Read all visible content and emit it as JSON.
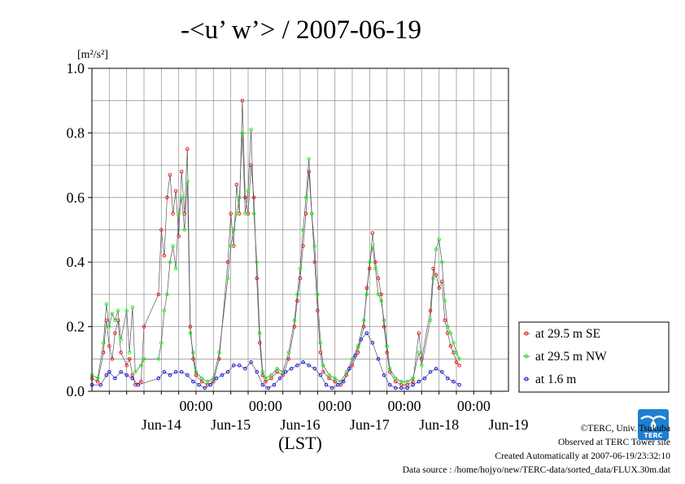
{
  "chart_data": {
    "type": "scatter",
    "title": "-<u’ w’> / 2007-06-19",
    "unit_label": "[m²/s²]",
    "xlabel": "(LST)",
    "ylim": [
      0.0,
      1.0
    ],
    "y_ticks": [
      "0.0",
      "0.2",
      "0.4",
      "0.6",
      "0.8",
      "1.0"
    ],
    "x_range_days": [
      "2007-06-13T12:00",
      "2007-06-19T12:00"
    ],
    "x_time_ticks": [
      "00:00",
      "00:00",
      "00:00",
      "00:00",
      "00:00"
    ],
    "x_day_labels": [
      "Jun-14",
      "Jun-15",
      "Jun-16",
      "Jun-17",
      "Jun-18",
      "Jun-19"
    ],
    "grid": true,
    "legend_position": "right-bottom",
    "series": [
      {
        "name": "at 29.5 m SE",
        "color": "#ff0000",
        "points": [
          [
            "06-13 12:00",
            0.04
          ],
          [
            "06-13 14:00",
            0.03
          ],
          [
            "06-13 16:00",
            0.12
          ],
          [
            "06-13 17:00",
            0.22
          ],
          [
            "06-13 18:00",
            0.14
          ],
          [
            "06-13 19:00",
            0.1
          ],
          [
            "06-13 20:00",
            0.18
          ],
          [
            "06-13 21:00",
            0.22
          ],
          [
            "06-13 22:00",
            0.12
          ],
          [
            "06-14 00:00",
            0.08
          ],
          [
            "06-14 01:00",
            0.1
          ],
          [
            "06-14 02:00",
            0.05
          ],
          [
            "06-14 03:00",
            0.02
          ],
          [
            "06-14 05:00",
            0.03
          ],
          [
            "06-14 06:00",
            0.2
          ],
          [
            "06-14 11:00",
            0.3
          ],
          [
            "06-14 12:00",
            0.5
          ],
          [
            "06-14 13:00",
            0.42
          ],
          [
            "06-14 14:00",
            0.6
          ],
          [
            "06-14 15:00",
            0.67
          ],
          [
            "06-14 16:00",
            0.55
          ],
          [
            "06-14 17:00",
            0.62
          ],
          [
            "06-14 18:00",
            0.48
          ],
          [
            "06-14 19:00",
            0.68
          ],
          [
            "06-14 20:00",
            0.55
          ],
          [
            "06-14 21:00",
            0.75
          ],
          [
            "06-14 22:00",
            0.2
          ],
          [
            "06-14 23:00",
            0.1
          ],
          [
            "06-15 00:00",
            0.05
          ],
          [
            "06-15 02:00",
            0.03
          ],
          [
            "06-15 04:00",
            0.02
          ],
          [
            "06-15 06:00",
            0.03
          ],
          [
            "06-15 08:00",
            0.1
          ],
          [
            "06-15 11:00",
            0.4
          ],
          [
            "06-15 12:00",
            0.55
          ],
          [
            "06-15 13:00",
            0.45
          ],
          [
            "06-15 14:00",
            0.64
          ],
          [
            "06-15 15:00",
            0.55
          ],
          [
            "06-15 16:00",
            0.9
          ],
          [
            "06-15 17:00",
            0.6
          ],
          [
            "06-15 18:00",
            0.55
          ],
          [
            "06-15 19:00",
            0.7
          ],
          [
            "06-15 20:00",
            0.6
          ],
          [
            "06-15 21:00",
            0.35
          ],
          [
            "06-15 22:00",
            0.15
          ],
          [
            "06-15 23:00",
            0.05
          ],
          [
            "06-16 00:00",
            0.03
          ],
          [
            "06-16 02:00",
            0.04
          ],
          [
            "06-16 04:00",
            0.06
          ],
          [
            "06-16 06:00",
            0.05
          ],
          [
            "06-16 08:00",
            0.1
          ],
          [
            "06-16 10:00",
            0.2
          ],
          [
            "06-16 11:00",
            0.28
          ],
          [
            "06-16 12:00",
            0.35
          ],
          [
            "06-16 13:00",
            0.45
          ],
          [
            "06-16 14:00",
            0.55
          ],
          [
            "06-16 15:00",
            0.68
          ],
          [
            "06-16 16:00",
            0.55
          ],
          [
            "06-16 17:00",
            0.4
          ],
          [
            "06-16 18:00",
            0.25
          ],
          [
            "06-16 19:00",
            0.12
          ],
          [
            "06-16 20:00",
            0.06
          ],
          [
            "06-16 22:00",
            0.04
          ],
          [
            "06-17 00:00",
            0.03
          ],
          [
            "06-17 02:00",
            0.02
          ],
          [
            "06-17 04:00",
            0.05
          ],
          [
            "06-17 06:00",
            0.08
          ],
          [
            "06-17 08:00",
            0.12
          ],
          [
            "06-17 10:00",
            0.2
          ],
          [
            "06-17 11:00",
            0.32
          ],
          [
            "06-17 12:00",
            0.38
          ],
          [
            "06-17 13:00",
            0.49
          ],
          [
            "06-17 14:00",
            0.4
          ],
          [
            "06-17 15:00",
            0.35
          ],
          [
            "06-17 16:00",
            0.3
          ],
          [
            "06-17 17:00",
            0.2
          ],
          [
            "06-17 18:00",
            0.12
          ],
          [
            "06-17 19:00",
            0.06
          ],
          [
            "06-17 21:00",
            0.03
          ],
          [
            "06-17 23:00",
            0.02
          ],
          [
            "06-18 01:00",
            0.02
          ],
          [
            "06-18 03:00",
            0.03
          ],
          [
            "06-18 05:00",
            0.18
          ],
          [
            "06-18 06:00",
            0.1
          ],
          [
            "06-18 09:00",
            0.25
          ],
          [
            "06-18 10:00",
            0.38
          ],
          [
            "06-18 11:00",
            0.36
          ],
          [
            "06-18 12:00",
            0.32
          ],
          [
            "06-18 13:00",
            0.34
          ],
          [
            "06-18 14:00",
            0.22
          ],
          [
            "06-18 15:00",
            0.18
          ],
          [
            "06-18 16:00",
            0.14
          ],
          [
            "06-18 17:00",
            0.12
          ],
          [
            "06-18 18:00",
            0.09
          ],
          [
            "06-18 19:00",
            0.08
          ]
        ]
      },
      {
        "name": "at 29.5 m NW",
        "color": "#00ff00",
        "points": [
          [
            "06-13 12:00",
            0.05
          ],
          [
            "06-13 14:00",
            0.04
          ],
          [
            "06-13 16:00",
            0.15
          ],
          [
            "06-13 17:00",
            0.27
          ],
          [
            "06-13 18:00",
            0.2
          ],
          [
            "06-13 19:00",
            0.24
          ],
          [
            "06-13 20:00",
            0.22
          ],
          [
            "06-13 21:00",
            0.25
          ],
          [
            "06-13 22:00",
            0.16
          ],
          [
            "06-14 00:00",
            0.25
          ],
          [
            "06-14 01:00",
            0.12
          ],
          [
            "06-14 02:00",
            0.26
          ],
          [
            "06-14 03:00",
            0.06
          ],
          [
            "06-14 05:00",
            0.08
          ],
          [
            "06-14 06:00",
            0.1
          ],
          [
            "06-14 11:00",
            0.1
          ],
          [
            "06-14 12:00",
            0.15
          ],
          [
            "06-14 13:00",
            0.25
          ],
          [
            "06-14 14:00",
            0.3
          ],
          [
            "06-14 15:00",
            0.4
          ],
          [
            "06-14 16:00",
            0.45
          ],
          [
            "06-14 17:00",
            0.38
          ],
          [
            "06-14 18:00",
            0.55
          ],
          [
            "06-14 19:00",
            0.6
          ],
          [
            "06-14 20:00",
            0.5
          ],
          [
            "06-14 21:00",
            0.65
          ],
          [
            "06-14 22:00",
            0.18
          ],
          [
            "06-14 23:00",
            0.12
          ],
          [
            "06-15 00:00",
            0.06
          ],
          [
            "06-15 02:00",
            0.04
          ],
          [
            "06-15 04:00",
            0.03
          ],
          [
            "06-15 06:00",
            0.04
          ],
          [
            "06-15 08:00",
            0.12
          ],
          [
            "06-15 11:00",
            0.35
          ],
          [
            "06-15 12:00",
            0.45
          ],
          [
            "06-15 13:00",
            0.5
          ],
          [
            "06-15 14:00",
            0.55
          ],
          [
            "06-15 15:00",
            0.6
          ],
          [
            "06-15 16:00",
            0.8
          ],
          [
            "06-15 17:00",
            0.55
          ],
          [
            "06-15 18:00",
            0.62
          ],
          [
            "06-15 19:00",
            0.81
          ],
          [
            "06-15 20:00",
            0.55
          ],
          [
            "06-15 21:00",
            0.4
          ],
          [
            "06-15 22:00",
            0.18
          ],
          [
            "06-15 23:00",
            0.06
          ],
          [
            "06-16 00:00",
            0.04
          ],
          [
            "06-16 02:00",
            0.05
          ],
          [
            "06-16 04:00",
            0.07
          ],
          [
            "06-16 06:00",
            0.06
          ],
          [
            "06-16 08:00",
            0.12
          ],
          [
            "06-16 10:00",
            0.22
          ],
          [
            "06-16 11:00",
            0.3
          ],
          [
            "06-16 12:00",
            0.38
          ],
          [
            "06-16 13:00",
            0.5
          ],
          [
            "06-16 14:00",
            0.6
          ],
          [
            "06-16 15:00",
            0.72
          ],
          [
            "06-16 16:00",
            0.55
          ],
          [
            "06-16 17:00",
            0.45
          ],
          [
            "06-16 18:00",
            0.3
          ],
          [
            "06-16 19:00",
            0.15
          ],
          [
            "06-16 20:00",
            0.08
          ],
          [
            "06-16 22:00",
            0.05
          ],
          [
            "06-17 00:00",
            0.04
          ],
          [
            "06-17 02:00",
            0.03
          ],
          [
            "06-17 04:00",
            0.06
          ],
          [
            "06-17 06:00",
            0.1
          ],
          [
            "06-17 08:00",
            0.14
          ],
          [
            "06-17 10:00",
            0.22
          ],
          [
            "06-17 11:00",
            0.3
          ],
          [
            "06-17 12:00",
            0.4
          ],
          [
            "06-17 13:00",
            0.45
          ],
          [
            "06-17 14:00",
            0.38
          ],
          [
            "06-17 15:00",
            0.3
          ],
          [
            "06-17 16:00",
            0.28
          ],
          [
            "06-17 17:00",
            0.22
          ],
          [
            "06-17 18:00",
            0.14
          ],
          [
            "06-17 19:00",
            0.07
          ],
          [
            "06-17 21:00",
            0.04
          ],
          [
            "06-17 23:00",
            0.03
          ],
          [
            "06-18 01:00",
            0.03
          ],
          [
            "06-18 03:00",
            0.04
          ],
          [
            "06-18 05:00",
            0.12
          ],
          [
            "06-18 06:00",
            0.08
          ],
          [
            "06-18 09:00",
            0.22
          ],
          [
            "06-18 10:00",
            0.35
          ],
          [
            "06-18 11:00",
            0.44
          ],
          [
            "06-18 12:00",
            0.47
          ],
          [
            "06-18 13:00",
            0.4
          ],
          [
            "06-18 14:00",
            0.28
          ],
          [
            "06-18 15:00",
            0.2
          ],
          [
            "06-18 16:00",
            0.18
          ],
          [
            "06-18 17:00",
            0.15
          ],
          [
            "06-18 18:00",
            0.12
          ],
          [
            "06-18 19:00",
            0.1
          ]
        ]
      },
      {
        "name": "at 1.6 m",
        "color": "#0000ff",
        "points": [
          [
            "06-13 12:00",
            0.02
          ],
          [
            "06-13 15:00",
            0.02
          ],
          [
            "06-13 17:00",
            0.05
          ],
          [
            "06-13 18:00",
            0.06
          ],
          [
            "06-13 20:00",
            0.04
          ],
          [
            "06-13 22:00",
            0.06
          ],
          [
            "06-14 00:00",
            0.05
          ],
          [
            "06-14 02:00",
            0.04
          ],
          [
            "06-14 04:00",
            0.02
          ],
          [
            "06-14 11:00",
            0.04
          ],
          [
            "06-14 13:00",
            0.06
          ],
          [
            "06-14 15:00",
            0.05
          ],
          [
            "06-14 17:00",
            0.06
          ],
          [
            "06-14 19:00",
            0.06
          ],
          [
            "06-14 21:00",
            0.05
          ],
          [
            "06-14 23:00",
            0.03
          ],
          [
            "06-15 01:00",
            0.02
          ],
          [
            "06-15 03:00",
            0.01
          ],
          [
            "06-15 05:00",
            0.02
          ],
          [
            "06-15 07:00",
            0.04
          ],
          [
            "06-15 09:00",
            0.05
          ],
          [
            "06-15 11:00",
            0.06
          ],
          [
            "06-15 13:00",
            0.08
          ],
          [
            "06-15 15:00",
            0.08
          ],
          [
            "06-15 17:00",
            0.07
          ],
          [
            "06-15 19:00",
            0.09
          ],
          [
            "06-15 21:00",
            0.06
          ],
          [
            "06-15 23:00",
            0.02
          ],
          [
            "06-16 01:00",
            0.01
          ],
          [
            "06-16 03:00",
            0.02
          ],
          [
            "06-16 05:00",
            0.04
          ],
          [
            "06-16 07:00",
            0.06
          ],
          [
            "06-16 09:00",
            0.07
          ],
          [
            "06-16 11:00",
            0.08
          ],
          [
            "06-16 13:00",
            0.09
          ],
          [
            "06-16 15:00",
            0.08
          ],
          [
            "06-16 17:00",
            0.07
          ],
          [
            "06-16 19:00",
            0.05
          ],
          [
            "06-16 21:00",
            0.02
          ],
          [
            "06-16 23:00",
            0.01
          ],
          [
            "06-17 01:00",
            0.02
          ],
          [
            "06-17 03:00",
            0.03
          ],
          [
            "06-17 05:00",
            0.07
          ],
          [
            "06-17 07:00",
            0.11
          ],
          [
            "06-17 09:00",
            0.16
          ],
          [
            "06-17 11:00",
            0.18
          ],
          [
            "06-17 13:00",
            0.15
          ],
          [
            "06-17 15:00",
            0.1
          ],
          [
            "06-17 17:00",
            0.05
          ],
          [
            "06-17 19:00",
            0.02
          ],
          [
            "06-17 21:00",
            0.01
          ],
          [
            "06-17 23:00",
            0.01
          ],
          [
            "06-18 01:00",
            0.01
          ],
          [
            "06-18 03:00",
            0.02
          ],
          [
            "06-18 05:00",
            0.03
          ],
          [
            "06-18 07:00",
            0.04
          ],
          [
            "06-18 09:00",
            0.06
          ],
          [
            "06-18 11:00",
            0.07
          ],
          [
            "06-18 13:00",
            0.06
          ],
          [
            "06-18 15:00",
            0.04
          ],
          [
            "06-18 17:00",
            0.03
          ],
          [
            "06-18 19:00",
            0.02
          ]
        ]
      }
    ]
  },
  "credits": {
    "copyright": "©TERC, Univ. Tsukuba",
    "observed": "Observed at TERC Tower site",
    "created": "Created Automatically at 2007-06-19/23:32:10",
    "source": "Data source : /home/hojyo/new/TERC-data/sorted_data/FLUX.30m.dat"
  },
  "logo": {
    "text": "TERC",
    "color": "#1f7fd0"
  }
}
